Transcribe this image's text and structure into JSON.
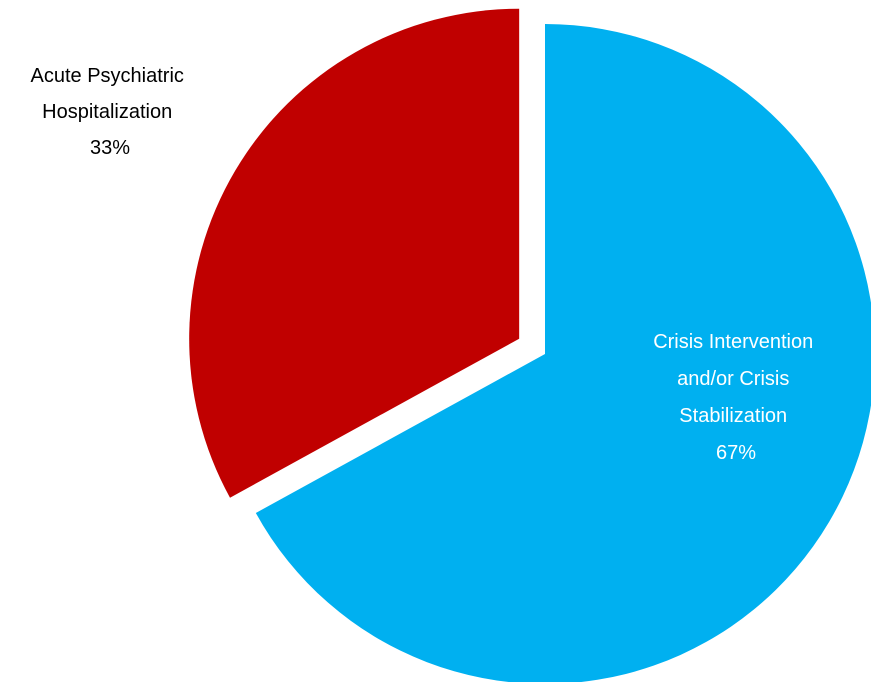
{
  "chart_data": {
    "type": "pie",
    "title": "",
    "slices": [
      {
        "label_lines": [
          "Crisis Intervention",
          "and/or Crisis",
          "Stabilization"
        ],
        "percent_label": "67%",
        "value": 67,
        "color": "#00b0f0",
        "label_color": "#ffffff"
      },
      {
        "label_lines": [
          "Acute Psychiatric",
          "Hospitalization"
        ],
        "percent_label": "33%",
        "value": 33,
        "color": "#c00000",
        "label_color": "#000000"
      }
    ]
  }
}
